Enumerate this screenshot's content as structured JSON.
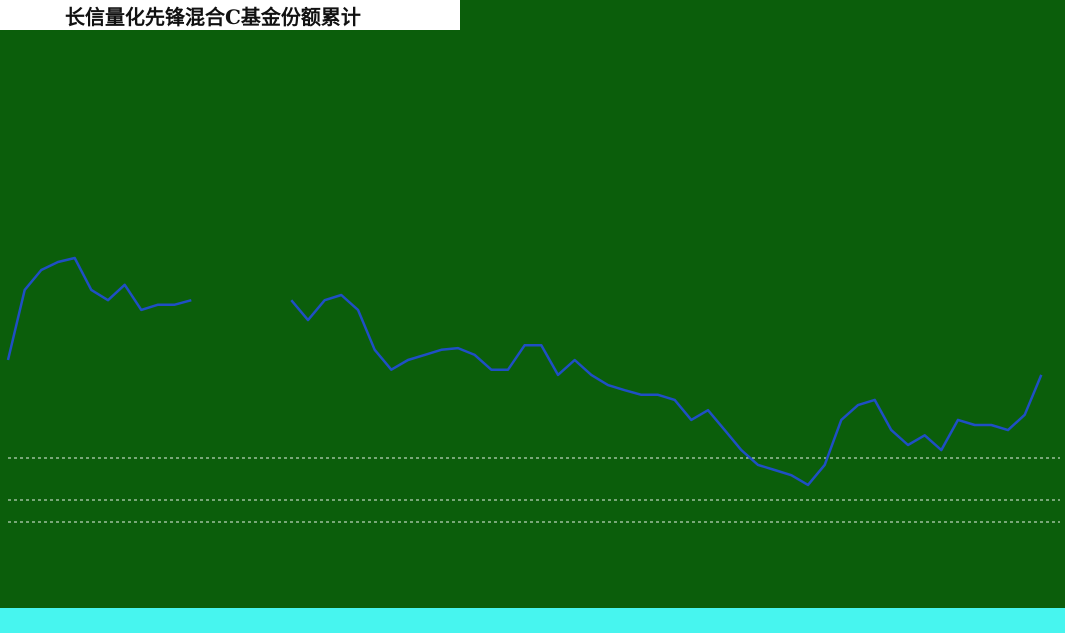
{
  "chart_data": {
    "type": "line",
    "title": "长信量化先锋混合C基金份额累计",
    "categories": [
      null,
      null,
      null,
      null,
      null,
      null,
      null,
      null,
      null,
      null,
      null,
      null,
      null,
      null,
      null,
      null,
      null,
      null,
      null,
      null,
      null,
      null,
      null,
      null,
      null,
      null,
      null,
      null,
      null,
      null,
      null,
      null,
      null,
      null,
      null,
      null,
      null,
      null,
      null,
      null,
      null,
      null,
      null,
      null,
      null,
      null,
      null,
      null,
      null,
      null,
      null,
      null,
      null,
      null,
      null,
      null,
      null,
      null,
      null,
      null,
      null,
      null,
      null,
      null
    ],
    "series": [
      {
        "name": null,
        "color": "#1f4fc4",
        "values": [
          42.1,
          54.4,
          57.9,
          59.3,
          60,
          54.4,
          52.6,
          55.3,
          50.9,
          51.8,
          51.8,
          52.6,
          null,
          null,
          null,
          null,
          null,
          52.6,
          49.1,
          52.6,
          53.5,
          50.9,
          43.9,
          40.4,
          42.1,
          43,
          43.9,
          44.2,
          43,
          40.4,
          40.4,
          44.7,
          44.7,
          39.5,
          42.1,
          39.5,
          37.7,
          36.8,
          36,
          36,
          35.1,
          31.6,
          33.3,
          29.8,
          26.3,
          23.7,
          22.8,
          21.9,
          20.2,
          23.7,
          31.6,
          34.2,
          35.1,
          29.8,
          27.2,
          28.9,
          26.3,
          31.6,
          30.7,
          30.7,
          29.8,
          32.5,
          39.5,
          null
        ]
      }
    ],
    "ylim": [
      0,
      100
    ]
  }
}
